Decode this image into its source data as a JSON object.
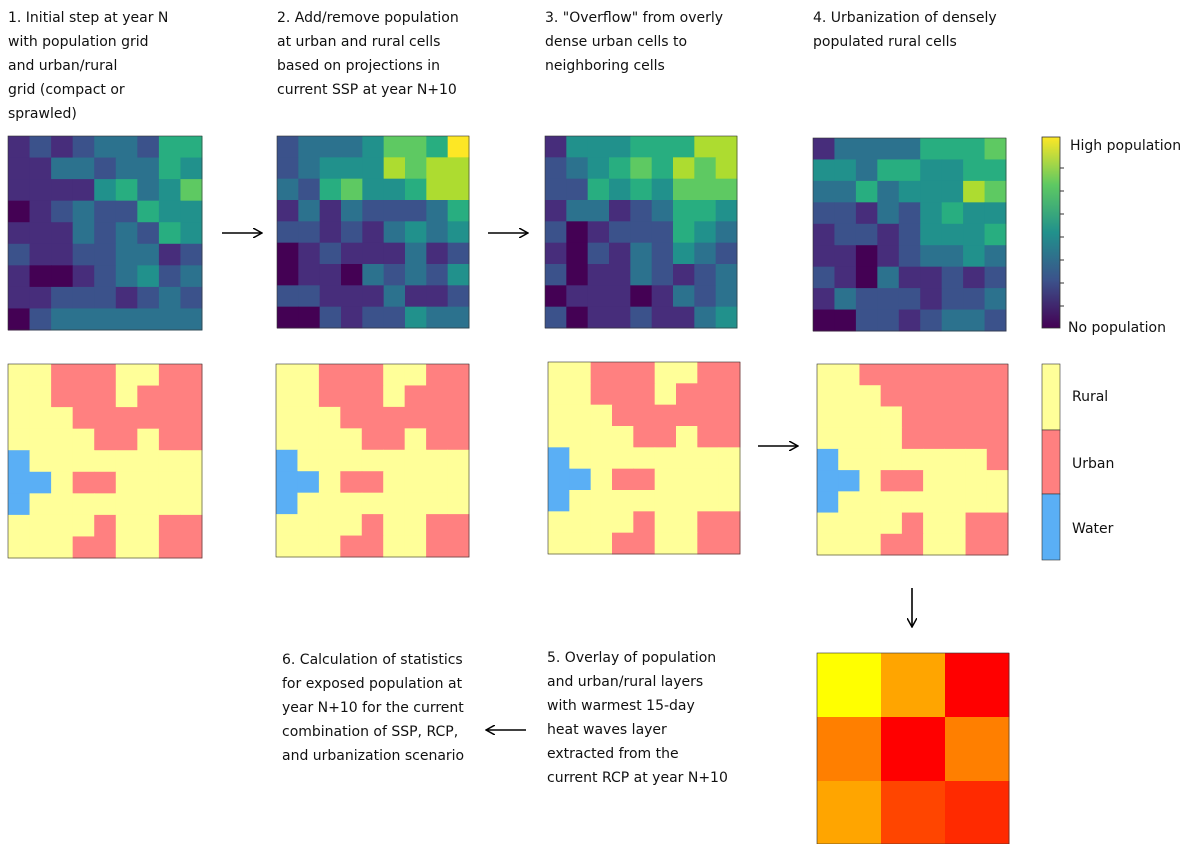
{
  "steps": [
    {
      "lines": [
        "1. Initial step at year N",
        "with population grid",
        "and urban/rural",
        "grid (compact or",
        "sprawled)"
      ]
    },
    {
      "lines": [
        "2. Add/remove population",
        "at urban and rural cells",
        "based on projections in",
        "current SSP at year N+10"
      ]
    },
    {
      "lines": [
        "3. \"Overflow\" from overly",
        "dense urban cells to",
        "neighboring cells"
      ]
    },
    {
      "lines": [
        "4. Urbanization of densely",
        "populated rural cells"
      ]
    },
    {
      "lines": [
        "5. Overlay of population",
        "and urban/rural layers",
        "with warmest 15-day",
        "heat waves layer",
        "extracted from the",
        "current RCP at year N+10"
      ]
    },
    {
      "lines": [
        "6. Calculation of statistics",
        "for exposed population at",
        "year N+10 for the current",
        "combination of SSP, RCP,",
        "and urbanization scenario"
      ]
    }
  ],
  "colorbar": {
    "high": "High population",
    "low": "No population"
  },
  "legend": [
    "Rural",
    "Urban",
    "Water"
  ]
}
